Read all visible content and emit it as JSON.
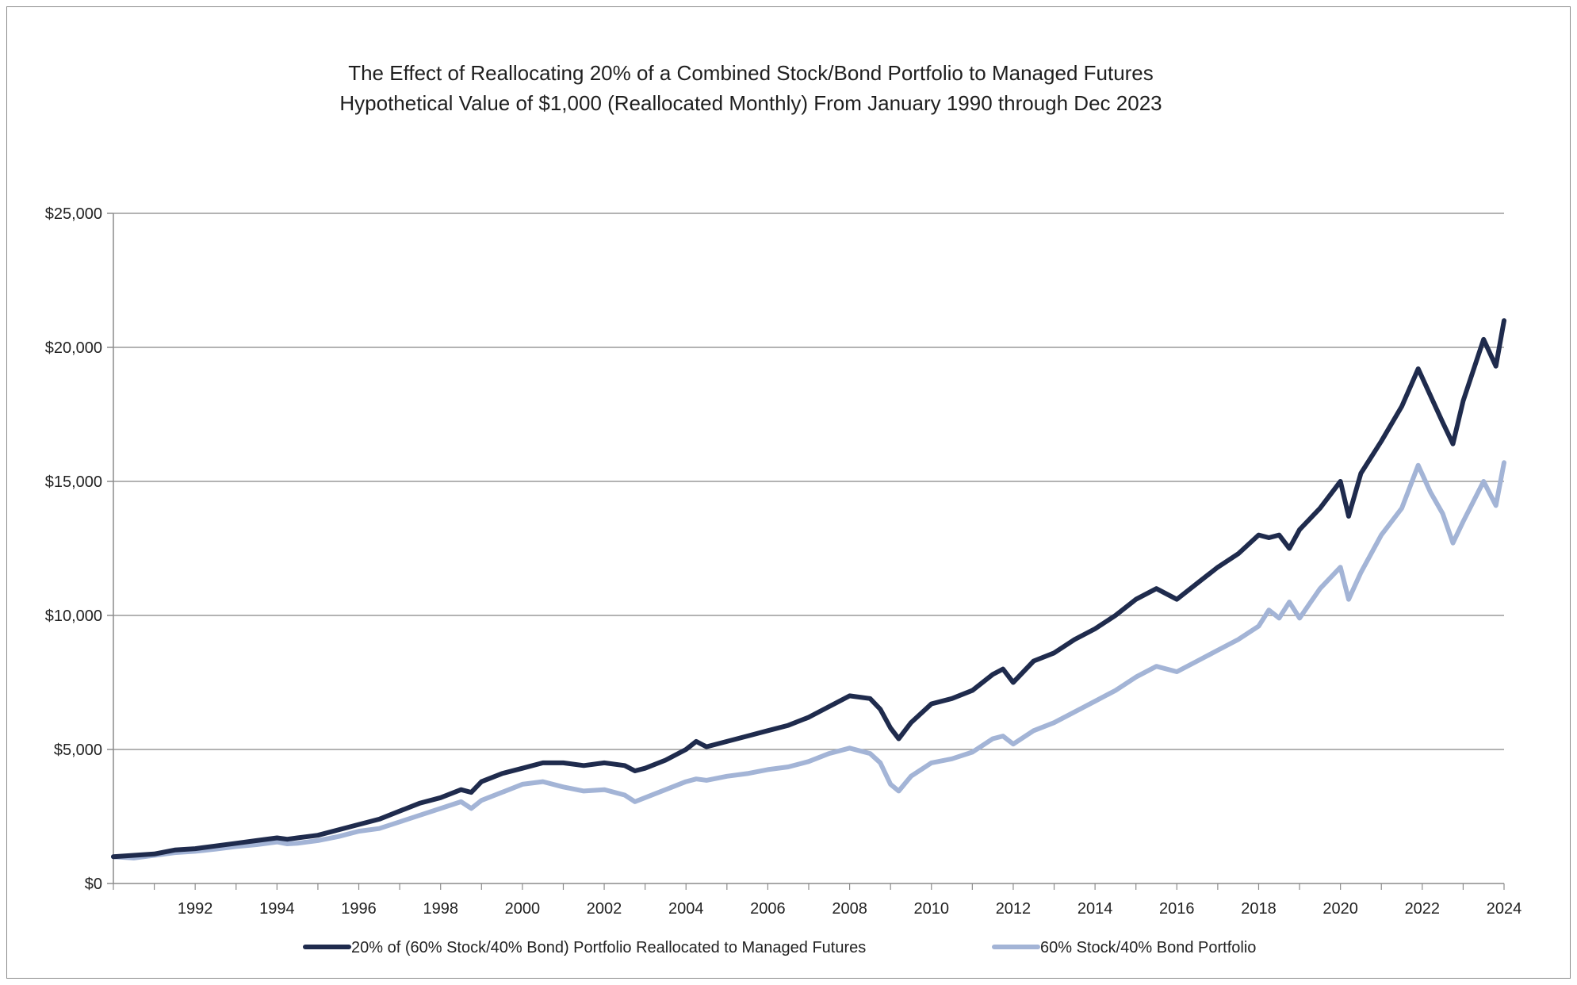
{
  "chart_data": {
    "type": "line",
    "title": "The Effect of Reallocating 20% of a Combined Stock/Bond Portfolio to Managed Futures",
    "subtitle": "Hypothetical Value of $1,000 (Reallocated Monthly) From January 1990 through Dec 2023",
    "xlabel": "",
    "ylabel": "",
    "xlim": [
      1990,
      2024
    ],
    "ylim": [
      0,
      25000
    ],
    "x_ticks": [
      1992,
      1994,
      1996,
      1998,
      2000,
      2002,
      2004,
      2006,
      2008,
      2010,
      2012,
      2014,
      2016,
      2018,
      2020,
      2022,
      2024
    ],
    "x_tick_labels": [
      "1992",
      "1994",
      "1996",
      "1998",
      "2000",
      "2002",
      "2004",
      "2006",
      "2008",
      "2010",
      "2012",
      "2014",
      "2016",
      "2018",
      "2020",
      "2022",
      "2024"
    ],
    "y_ticks": [
      0,
      5000,
      10000,
      15000,
      20000,
      25000
    ],
    "y_tick_labels": [
      "$0",
      "$5,000",
      "$10,000",
      "$15,000",
      "$20,000",
      "$25,000"
    ],
    "grid": "horizontal",
    "legend_position": "bottom",
    "series": [
      {
        "name": "20% of (60% Stock/40% Bond) Portfolio Reallocated to Managed Futures",
        "color": "#1f2b4d",
        "points": [
          [
            1990.0,
            1000
          ],
          [
            1990.5,
            1050
          ],
          [
            1991.0,
            1100
          ],
          [
            1991.5,
            1250
          ],
          [
            1992.0,
            1300
          ],
          [
            1992.5,
            1400
          ],
          [
            1993.0,
            1500
          ],
          [
            1993.5,
            1600
          ],
          [
            1994.0,
            1700
          ],
          [
            1994.25,
            1650
          ],
          [
            1994.5,
            1700
          ],
          [
            1995.0,
            1800
          ],
          [
            1995.5,
            2000
          ],
          [
            1996.0,
            2200
          ],
          [
            1996.5,
            2400
          ],
          [
            1997.0,
            2700
          ],
          [
            1997.5,
            3000
          ],
          [
            1998.0,
            3200
          ],
          [
            1998.5,
            3500
          ],
          [
            1998.75,
            3400
          ],
          [
            1999.0,
            3800
          ],
          [
            1999.5,
            4100
          ],
          [
            2000.0,
            4300
          ],
          [
            2000.5,
            4500
          ],
          [
            2001.0,
            4500
          ],
          [
            2001.5,
            4400
          ],
          [
            2002.0,
            4500
          ],
          [
            2002.5,
            4400
          ],
          [
            2002.75,
            4200
          ],
          [
            2003.0,
            4300
          ],
          [
            2003.5,
            4600
          ],
          [
            2004.0,
            5000
          ],
          [
            2004.25,
            5300
          ],
          [
            2004.5,
            5100
          ],
          [
            2005.0,
            5300
          ],
          [
            2005.5,
            5500
          ],
          [
            2006.0,
            5700
          ],
          [
            2006.5,
            5900
          ],
          [
            2007.0,
            6200
          ],
          [
            2007.5,
            6600
          ],
          [
            2008.0,
            7000
          ],
          [
            2008.5,
            6900
          ],
          [
            2008.75,
            6500
          ],
          [
            2009.0,
            5800
          ],
          [
            2009.2,
            5400
          ],
          [
            2009.5,
            6000
          ],
          [
            2010.0,
            6700
          ],
          [
            2010.5,
            6900
          ],
          [
            2011.0,
            7200
          ],
          [
            2011.5,
            7800
          ],
          [
            2011.75,
            8000
          ],
          [
            2012.0,
            7500
          ],
          [
            2012.5,
            8300
          ],
          [
            2013.0,
            8600
          ],
          [
            2013.5,
            9100
          ],
          [
            2014.0,
            9500
          ],
          [
            2014.5,
            10000
          ],
          [
            2015.0,
            10600
          ],
          [
            2015.5,
            11000
          ],
          [
            2016.0,
            10600
          ],
          [
            2016.5,
            11200
          ],
          [
            2017.0,
            11800
          ],
          [
            2017.5,
            12300
          ],
          [
            2018.0,
            13000
          ],
          [
            2018.25,
            12900
          ],
          [
            2018.5,
            13000
          ],
          [
            2018.75,
            12500
          ],
          [
            2019.0,
            13200
          ],
          [
            2019.5,
            14000
          ],
          [
            2020.0,
            15000
          ],
          [
            2020.2,
            13700
          ],
          [
            2020.5,
            15300
          ],
          [
            2021.0,
            16500
          ],
          [
            2021.5,
            17800
          ],
          [
            2021.9,
            19200
          ],
          [
            2022.2,
            18200
          ],
          [
            2022.5,
            17200
          ],
          [
            2022.75,
            16400
          ],
          [
            2023.0,
            18000
          ],
          [
            2023.5,
            20300
          ],
          [
            2023.8,
            19300
          ],
          [
            2024.0,
            21000
          ]
        ]
      },
      {
        "name": "60% Stock/40% Bond Portfolio",
        "color": "#a3b4d6",
        "points": [
          [
            1990.0,
            1000
          ],
          [
            1990.5,
            950
          ],
          [
            1991.0,
            1050
          ],
          [
            1991.5,
            1150
          ],
          [
            1992.0,
            1200
          ],
          [
            1992.5,
            1280
          ],
          [
            1993.0,
            1380
          ],
          [
            1993.5,
            1450
          ],
          [
            1994.0,
            1550
          ],
          [
            1994.25,
            1480
          ],
          [
            1994.5,
            1500
          ],
          [
            1995.0,
            1600
          ],
          [
            1995.5,
            1750
          ],
          [
            1996.0,
            1950
          ],
          [
            1996.5,
            2050
          ],
          [
            1997.0,
            2300
          ],
          [
            1997.5,
            2550
          ],
          [
            1998.0,
            2800
          ],
          [
            1998.5,
            3050
          ],
          [
            1998.75,
            2800
          ],
          [
            1999.0,
            3100
          ],
          [
            1999.5,
            3400
          ],
          [
            2000.0,
            3700
          ],
          [
            2000.5,
            3800
          ],
          [
            2001.0,
            3600
          ],
          [
            2001.5,
            3450
          ],
          [
            2002.0,
            3500
          ],
          [
            2002.5,
            3300
          ],
          [
            2002.75,
            3050
          ],
          [
            2003.0,
            3200
          ],
          [
            2003.5,
            3500
          ],
          [
            2004.0,
            3800
          ],
          [
            2004.25,
            3900
          ],
          [
            2004.5,
            3850
          ],
          [
            2005.0,
            4000
          ],
          [
            2005.5,
            4100
          ],
          [
            2006.0,
            4250
          ],
          [
            2006.5,
            4350
          ],
          [
            2007.0,
            4550
          ],
          [
            2007.5,
            4850
          ],
          [
            2008.0,
            5050
          ],
          [
            2008.5,
            4850
          ],
          [
            2008.75,
            4500
          ],
          [
            2009.0,
            3700
          ],
          [
            2009.2,
            3450
          ],
          [
            2009.5,
            4000
          ],
          [
            2010.0,
            4500
          ],
          [
            2010.5,
            4650
          ],
          [
            2011.0,
            4900
          ],
          [
            2011.5,
            5400
          ],
          [
            2011.75,
            5500
          ],
          [
            2012.0,
            5200
          ],
          [
            2012.5,
            5700
          ],
          [
            2013.0,
            6000
          ],
          [
            2013.5,
            6400
          ],
          [
            2014.0,
            6800
          ],
          [
            2014.5,
            7200
          ],
          [
            2015.0,
            7700
          ],
          [
            2015.5,
            8100
          ],
          [
            2016.0,
            7900
          ],
          [
            2016.5,
            8300
          ],
          [
            2017.0,
            8700
          ],
          [
            2017.5,
            9100
          ],
          [
            2018.0,
            9600
          ],
          [
            2018.25,
            10200
          ],
          [
            2018.5,
            9900
          ],
          [
            2018.75,
            10500
          ],
          [
            2019.0,
            9900
          ],
          [
            2019.5,
            11000
          ],
          [
            2020.0,
            11800
          ],
          [
            2020.2,
            10600
          ],
          [
            2020.5,
            11600
          ],
          [
            2021.0,
            13000
          ],
          [
            2021.5,
            14000
          ],
          [
            2021.9,
            15600
          ],
          [
            2022.2,
            14600
          ],
          [
            2022.5,
            13800
          ],
          [
            2022.75,
            12700
          ],
          [
            2023.0,
            13500
          ],
          [
            2023.5,
            15000
          ],
          [
            2023.8,
            14100
          ],
          [
            2024.0,
            15700
          ]
        ]
      }
    ]
  }
}
